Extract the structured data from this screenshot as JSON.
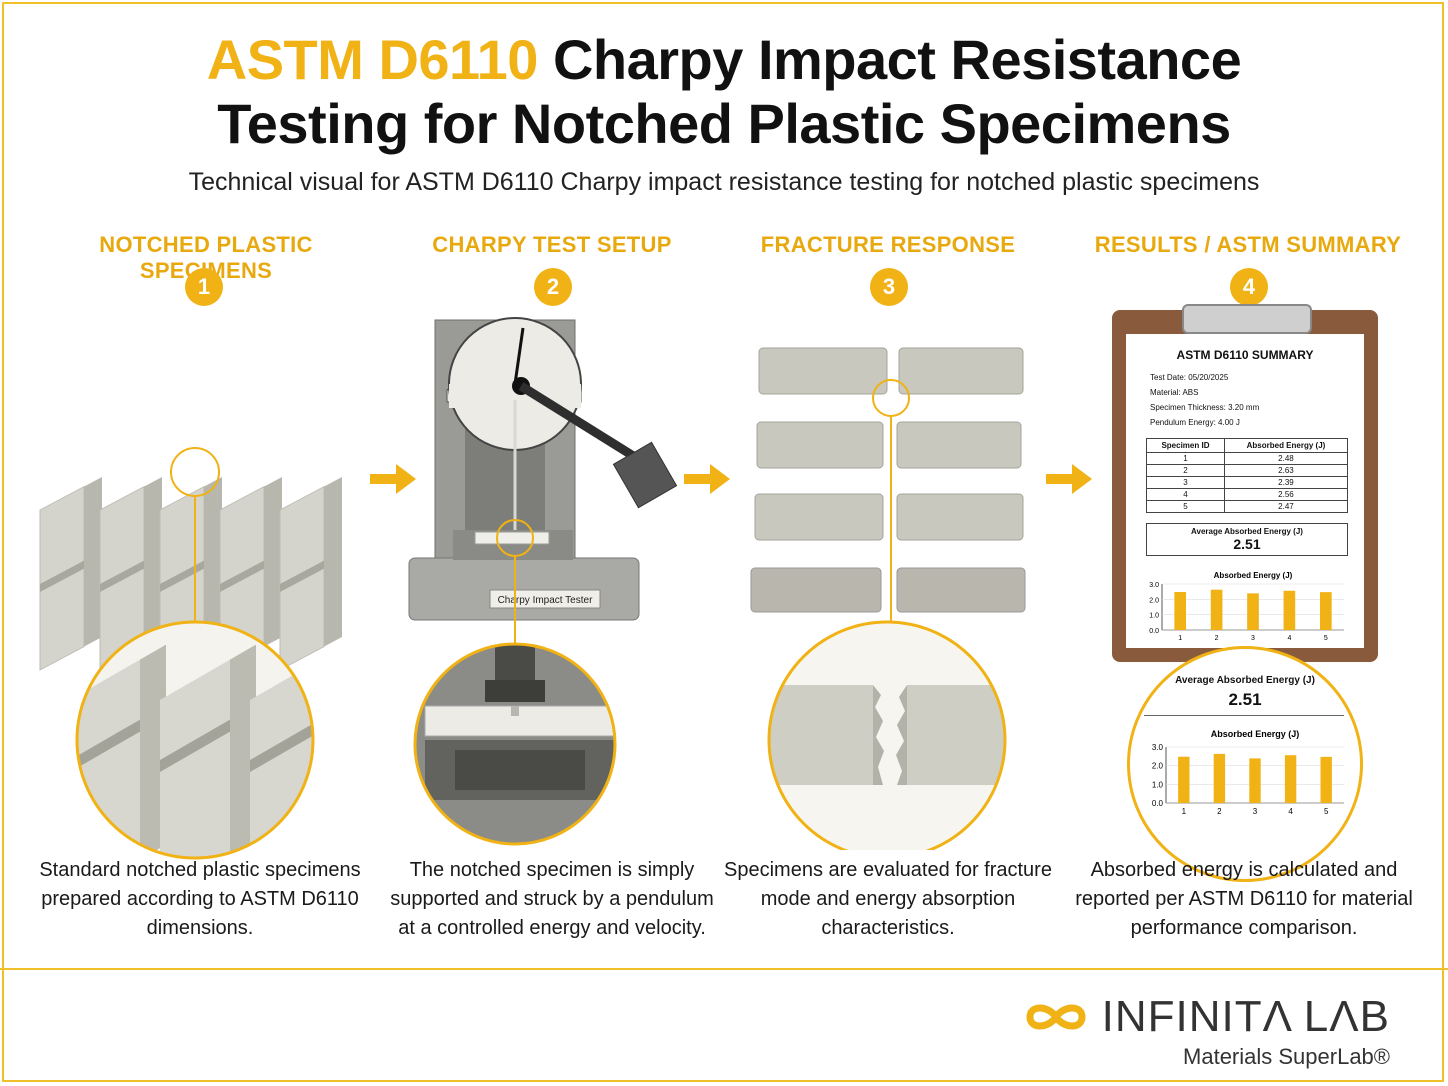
{
  "title": {
    "accent": "ASTM D6110",
    "line1_rest": " Charpy Impact Resistance",
    "line2": "Testing for Notched Plastic Specimens"
  },
  "subtitle": "Technical visual for ASTM D6110 Charpy impact resistance testing for notched plastic specimens",
  "steps": [
    {
      "number": "1",
      "label": "NOTCHED PLASTIC SPECIMENS",
      "caption": "Standard notched plastic specimens prepared according to ASTM D6110 dimensions."
    },
    {
      "number": "2",
      "label": "CHARPY TEST SETUP",
      "caption": "The notched specimen is simply supported and struck by a pendulum at a controlled energy and velocity."
    },
    {
      "number": "3",
      "label": "FRACTURE RESPONSE",
      "caption": "Specimens are evaluated for fracture mode and energy absorption characteristics."
    },
    {
      "number": "4",
      "label": "RESULTS / ASTM SUMMARY",
      "caption": "Absorbed energy is calculated and reported per ASTM D6110 for material performance comparison."
    }
  ],
  "tester_label": "Charpy Impact Tester",
  "summary": {
    "heading": "ASTM D6110 SUMMARY",
    "test_date": "Test Date: 05/20/2025",
    "material": "Material: ABS",
    "thickness": "Specimen Thickness: 3.20 mm",
    "pendulum": "Pendulum Energy: 4.00 J",
    "table_headers": [
      "Specimen ID",
      "Absorbed Energy (J)"
    ],
    "rows": [
      [
        "1",
        "2.48"
      ],
      [
        "2",
        "2.63"
      ],
      [
        "3",
        "2.39"
      ],
      [
        "4",
        "2.56"
      ],
      [
        "5",
        "2.47"
      ]
    ],
    "avg_label": "Average Absorbed Energy (J)",
    "avg_value": "2.51",
    "chart_title": "Absorbed Energy (J)"
  },
  "chart_data": {
    "type": "bar",
    "title": "Absorbed Energy (J)",
    "categories": [
      "1",
      "2",
      "3",
      "4",
      "5"
    ],
    "values": [
      2.48,
      2.63,
      2.39,
      2.56,
      2.47
    ],
    "yticks": [
      "3.0",
      "2.0",
      "1.0",
      "0.0"
    ],
    "ylim": [
      0,
      3
    ],
    "color": "#f0b214"
  },
  "brand": {
    "name": "INFINITΛ LΛB",
    "tagline": "Materials SuperLab®",
    "accent": "#f0b214"
  }
}
